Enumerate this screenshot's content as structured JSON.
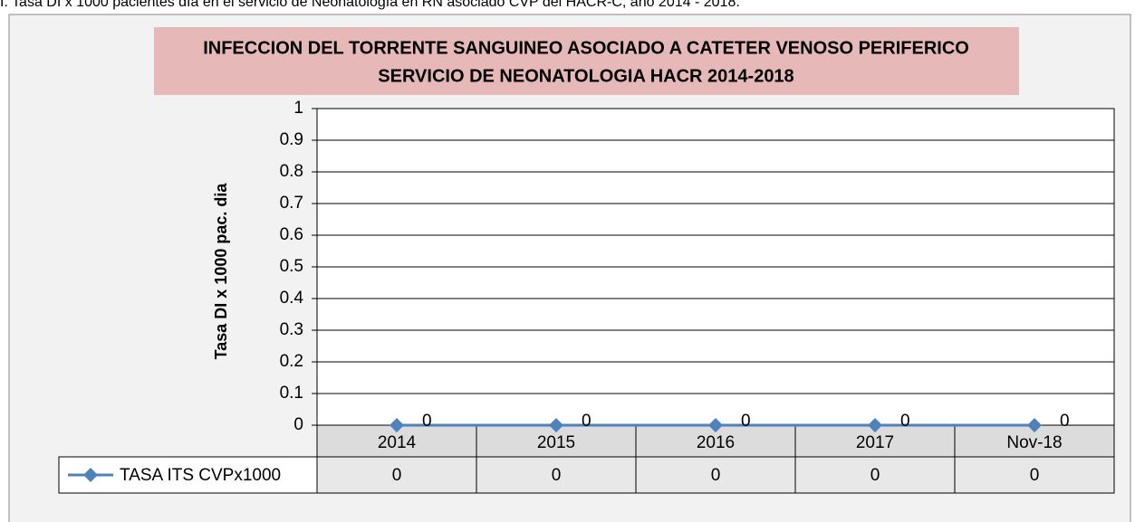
{
  "caption": "I. Tasa DI x 1000 pacientes día en el servicio de Neonatología en RN asociado CVP del HACR-C, año 2014 - 2018.",
  "chart_data": {
    "type": "line",
    "title": "INFECCION DEL TORRENTE SANGUINEO ASOCIADO A CATETER VENOSO PERIFERICO",
    "subtitle": "SERVICIO DE NEONATOLOGIA  HACR  2014-2018",
    "y_label": "Tasa DI x 1000 pac. dia",
    "categories": [
      "2014",
      "2015",
      "2016",
      "2017",
      "Nov-18"
    ],
    "series": [
      {
        "name": "TASA ITS CVPx1000",
        "color": "#4f81bd",
        "values": [
          0,
          0,
          0,
          0,
          0
        ]
      }
    ],
    "ylim": [
      0,
      1
    ],
    "yticks": [
      0,
      0.1,
      0.2,
      0.3,
      0.4,
      0.5,
      0.6,
      0.7,
      0.8,
      0.9,
      1
    ],
    "grid": true
  }
}
